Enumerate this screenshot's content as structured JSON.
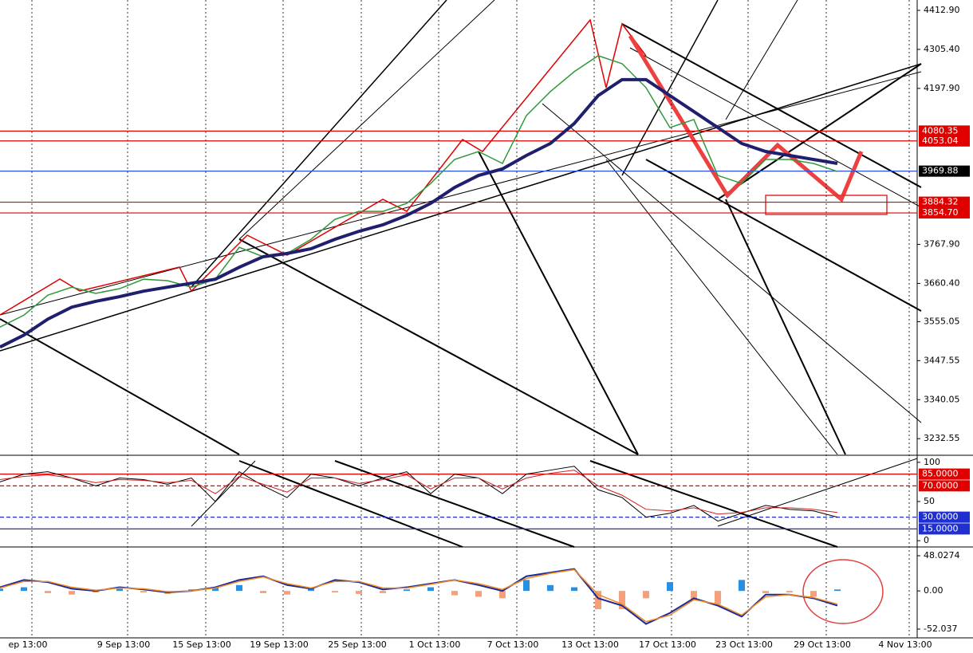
{
  "chart_data": [
    {
      "type": "line",
      "ylim": [
        3189,
        4441.5
      ],
      "yticks": [
        {
          "value": 4412.9,
          "label": "4412.90"
        },
        {
          "value": 4305.4,
          "label": "4305.40"
        },
        {
          "value": 4197.9,
          "label": "4197.90"
        },
        {
          "value": 3767.9,
          "label": "3767.90"
        },
        {
          "value": 3660.4,
          "label": "3660.40"
        },
        {
          "value": 3555.05,
          "label": "3555.05"
        },
        {
          "value": 3447.55,
          "label": "3447.55"
        },
        {
          "value": 3340.05,
          "label": "3340.05"
        },
        {
          "value": 3232.55,
          "label": "3232.55"
        }
      ],
      "levels": [
        {
          "value": 4080.35,
          "label": "4080.35",
          "color": "#e00000",
          "box": "#e00000"
        },
        {
          "value": 4053.04,
          "label": "4053.04",
          "color": "#e00000",
          "box": "#e00000"
        },
        {
          "value": 3969.88,
          "label": "3969.88",
          "color": "#3050e0",
          "box": "#000000"
        },
        {
          "value": 3884.32,
          "label": "3884.32",
          "color": "#e00000",
          "box": "#e00000"
        },
        {
          "value": 3854.7,
          "label": "3854.70",
          "color": "#e00000",
          "box": "#e00000"
        }
      ],
      "series": [
        {
          "color": "#2f9a3a",
          "width": 1.5,
          "values": [
            3540,
            3573,
            3628,
            3650,
            3633,
            3646,
            3672,
            3668,
            3650,
            3672,
            3760,
            3734,
            3743,
            3782,
            3837,
            3859,
            3859,
            3881,
            3936,
            4002,
            4024,
            3991,
            4123,
            4189,
            4244,
            4288,
            4266,
            4200,
            4090,
            4112,
            3958,
            3936,
            4002,
            4002,
            3991,
            3969
          ]
        },
        {
          "color": "#1f1f6e",
          "width": 4,
          "values": [
            3485,
            3518,
            3562,
            3595,
            3611,
            3624,
            3639,
            3650,
            3661,
            3672,
            3705,
            3734,
            3743,
            3756,
            3782,
            3804,
            3822,
            3848,
            3881,
            3925,
            3958,
            3976,
            4013,
            4046,
            4101,
            4178,
            4222,
            4222,
            4178,
            4134,
            4090,
            4046,
            4024,
            4013,
            4002,
            3991
          ]
        }
      ]
    },
    {
      "type": "line",
      "ylim": [
        -7,
        108
      ],
      "yticks": [
        0,
        50,
        100
      ],
      "levels": [
        {
          "value": 85,
          "label": "85.0000",
          "color": "#e00000",
          "box": "#e00000",
          "dash": false
        },
        {
          "value": 70,
          "label": "70.0000",
          "color": "#e00000",
          "box": "#e00000",
          "dash": true
        },
        {
          "value": 30,
          "label": "30.0000",
          "color": "#2030d0",
          "box": "#2030d0",
          "dash": true
        },
        {
          "value": 15,
          "label": "15.0000",
          "color": "#2030d0",
          "box": "#2030d0",
          "dash": false
        }
      ],
      "series": [
        {
          "color": "#000000",
          "width": 1,
          "values": [
            75,
            85,
            88,
            80,
            70,
            80,
            78,
            72,
            80,
            50,
            88,
            70,
            55,
            85,
            80,
            70,
            80,
            88,
            60,
            85,
            80,
            60,
            85,
            90,
            95,
            65,
            55,
            30,
            35,
            45,
            25,
            35,
            45,
            40,
            38,
            30
          ]
        },
        {
          "color": "#d02020",
          "width": 1,
          "values": [
            78,
            82,
            84,
            80,
            74,
            78,
            77,
            74,
            77,
            60,
            82,
            72,
            62,
            80,
            80,
            73,
            78,
            84,
            66,
            80,
            80,
            66,
            80,
            86,
            90,
            70,
            58,
            40,
            38,
            42,
            34,
            36,
            42,
            42,
            40,
            36
          ]
        }
      ]
    },
    {
      "type": "macd",
      "ylim": [
        -64,
        57.8
      ],
      "yticks": [
        {
          "value": 48.0274,
          "label": "48.0274"
        },
        {
          "value": 0,
          "label": "0.00"
        },
        {
          "value": -52.037,
          "label": "-52.037"
        }
      ],
      "bar_colors": [
        "#2a8fe0",
        "#f5a07a"
      ],
      "bars": [
        3,
        5,
        -3,
        -5,
        -2,
        3,
        -2,
        -4,
        2,
        5,
        8,
        -3,
        -5,
        4,
        -2,
        -4,
        -3,
        2,
        5,
        -6,
        -8,
        -10,
        15,
        8,
        5,
        -25,
        -25,
        -10,
        12,
        -12,
        -18,
        15,
        -3,
        -2,
        -8,
        2
      ],
      "series": [
        {
          "color": "#1a2a9a",
          "width": 2,
          "values": [
            5,
            15,
            12,
            3,
            0,
            5,
            2,
            -2,
            0,
            5,
            15,
            20,
            8,
            3,
            15,
            12,
            2,
            5,
            10,
            15,
            8,
            0,
            20,
            25,
            30,
            -10,
            -20,
            -45,
            -30,
            -10,
            -20,
            -35,
            -5,
            -5,
            -10,
            -20
          ]
        },
        {
          "color": "#f08a20",
          "width": 1.5,
          "values": [
            4,
            13,
            13,
            5,
            1,
            4,
            3,
            -1,
            0,
            4,
            13,
            19,
            10,
            4,
            13,
            13,
            4,
            4,
            9,
            15,
            10,
            2,
            17,
            24,
            29,
            -5,
            -18,
            -42,
            -33,
            -12,
            -18,
            -33,
            -8,
            -5,
            -9,
            -18
          ]
        }
      ],
      "xticks": [
        "ep 13:00",
        "9 Sep 13:00",
        "15 Sep 13:00",
        "19 Sep 13:00",
        "25 Sep 13:00",
        "1 Oct 13:00",
        "7 Oct 13:00",
        "13 Oct 13:00",
        "17 Oct 13:00",
        "23 Oct 13:00",
        "29 Oct 13:00",
        "4 Nov 13:00"
      ]
    }
  ]
}
